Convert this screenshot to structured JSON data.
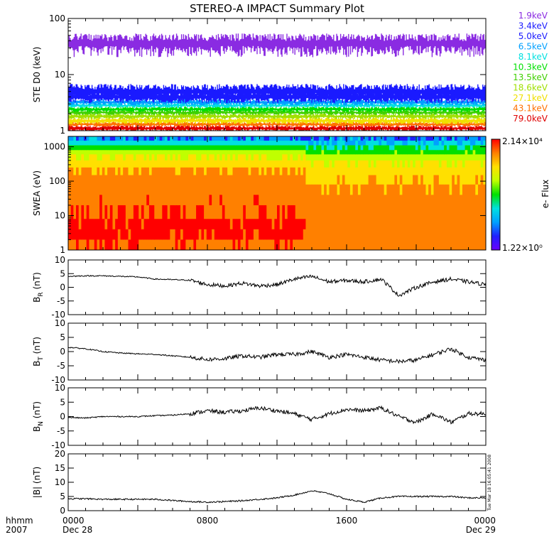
{
  "title": "STEREO-A IMPACT Summary Plot",
  "colors": {
    "black": "#000000",
    "frame": "#000000"
  },
  "chart_data": [
    {
      "id": "ste",
      "type": "line",
      "ylabel": "STE D0 (keV)",
      "yscale": "log",
      "ylim": [
        1,
        100
      ],
      "yticks": [
        {
          "v": 1,
          "label": "1"
        },
        {
          "v": 10,
          "label": "10"
        },
        {
          "v": 100,
          "label": "100"
        }
      ],
      "series": [
        {
          "name": "1.9keV",
          "color": "#8a2be2",
          "level": 36,
          "spread": 12
        },
        {
          "name": "3.4keV",
          "color": "#1a1aff",
          "level": 5.0,
          "spread": 1.2
        },
        {
          "name": "5.0keV",
          "color": "#1a1aff",
          "level": 4.0,
          "spread": 0.7
        },
        {
          "name": "6.5keV",
          "color": "#00a0ff",
          "level": 3.2,
          "spread": 0.3
        },
        {
          "name": "8.1keV",
          "color": "#00e0e0",
          "level": 2.8,
          "spread": 0.2
        },
        {
          "name": "10.3keV",
          "color": "#00e000",
          "level": 2.4,
          "spread": 0.2
        },
        {
          "name": "13.5keV",
          "color": "#40d000",
          "level": 2.1,
          "spread": 0.15
        },
        {
          "name": "18.6keV",
          "color": "#a0e000",
          "level": 1.8,
          "spread": 0.15
        },
        {
          "name": "27.1keV",
          "color": "#f0e000",
          "level": 1.5,
          "spread": 0.15
        },
        {
          "name": "43.1keV",
          "color": "#ff7000",
          "level": 1.3,
          "spread": 0.1
        },
        {
          "name": "79.0keV",
          "color": "#e00000",
          "level": 1.1,
          "spread": 0.1
        }
      ]
    },
    {
      "id": "swea",
      "type": "heatmap",
      "ylabel": "SWEA (eV)",
      "yscale": "log",
      "ylim": [
        1,
        2000
      ],
      "yticks": [
        {
          "v": 1,
          "label": "1"
        },
        {
          "v": 10,
          "label": "10"
        },
        {
          "v": 100,
          "label": "100"
        },
        {
          "v": 1000,
          "label": "1000"
        }
      ],
      "colorbar": {
        "label": "e- Flux",
        "max_label": "2.14×10⁴",
        "min_label": "1.22×10⁰",
        "max": 21400,
        "min": 1.22,
        "stops": [
          "#6a00ff",
          "#2020ff",
          "#00a0ff",
          "#00e0e0",
          "#00e000",
          "#c0ff00",
          "#ffe000",
          "#ff8000",
          "#ff0000"
        ]
      },
      "energy_profile_front": [
        {
          "e": 2000,
          "level": 0.2
        },
        {
          "e": 1500,
          "level": 0.3
        },
        {
          "e": 1100,
          "level": 0.45
        },
        {
          "e": 800,
          "level": 0.55
        },
        {
          "e": 600,
          "level": 0.65
        },
        {
          "e": 400,
          "level": 0.73
        },
        {
          "e": 250,
          "level": 0.8
        },
        {
          "e": 150,
          "level": 0.84
        },
        {
          "e": 80,
          "level": 0.88
        },
        {
          "e": 40,
          "level": 0.9
        },
        {
          "e": 20,
          "level": 0.92
        },
        {
          "e": 8,
          "level": 0.95
        },
        {
          "e": 4,
          "level": 0.97
        },
        {
          "e": 2,
          "level": 0.95
        },
        {
          "e": 1,
          "level": 0.9
        }
      ]
    },
    {
      "id": "br",
      "type": "line",
      "ylabel": "B_R (nT)",
      "ylim": [
        -10,
        10
      ],
      "yticks": [
        {
          "v": -10,
          "label": "-10"
        },
        {
          "v": -5,
          "label": "-5"
        },
        {
          "v": 0,
          "label": "0"
        },
        {
          "v": 5,
          "label": "5"
        },
        {
          "v": 10,
          "label": "10"
        }
      ],
      "x_hours": [
        0,
        1,
        2,
        3,
        4,
        5,
        6,
        7,
        8,
        9,
        10,
        11,
        12,
        13,
        14,
        15,
        16,
        17,
        18,
        19,
        20,
        21,
        22,
        23,
        24
      ],
      "values": [
        4,
        4.2,
        4.2,
        4,
        3.8,
        3,
        2.8,
        2.6,
        1,
        0.5,
        1.5,
        0.5,
        1,
        3,
        4,
        2,
        2.5,
        2,
        3,
        -3,
        0,
        2,
        3,
        2,
        1
      ]
    },
    {
      "id": "bt",
      "type": "line",
      "ylabel": "B_T (nT)",
      "ylim": [
        -10,
        10
      ],
      "yticks": [
        {
          "v": -10,
          "label": "-10"
        },
        {
          "v": -5,
          "label": "-5"
        },
        {
          "v": 0,
          "label": "0"
        },
        {
          "v": 5,
          "label": "5"
        },
        {
          "v": 10,
          "label": "10"
        }
      ],
      "x_hours": [
        0,
        1,
        2,
        3,
        4,
        5,
        6,
        7,
        8,
        9,
        10,
        11,
        12,
        13,
        14,
        15,
        16,
        17,
        18,
        19,
        20,
        21,
        22,
        23,
        24
      ],
      "values": [
        1.5,
        1,
        0,
        -0.5,
        -0.8,
        -1,
        -1.5,
        -2,
        -2.8,
        -2.5,
        -1.5,
        -2,
        -1,
        -1,
        0,
        -2,
        -1,
        -2,
        -3,
        -3.5,
        -3,
        -1,
        1,
        -2,
        -3
      ]
    },
    {
      "id": "bn",
      "type": "line",
      "ylabel": "B_N (nT)",
      "ylim": [
        -10,
        10
      ],
      "yticks": [
        {
          "v": -10,
          "label": "-10"
        },
        {
          "v": -5,
          "label": "-5"
        },
        {
          "v": 0,
          "label": "0"
        },
        {
          "v": 5,
          "label": "5"
        },
        {
          "v": 10,
          "label": "10"
        }
      ],
      "x_hours": [
        0,
        1,
        2,
        3,
        4,
        5,
        6,
        7,
        8,
        9,
        10,
        11,
        12,
        13,
        14,
        15,
        16,
        17,
        18,
        19,
        20,
        21,
        22,
        23,
        24
      ],
      "values": [
        -0.3,
        -0.5,
        0,
        0,
        0,
        0.3,
        0.5,
        1,
        2,
        1.5,
        2,
        3,
        2,
        1,
        -1,
        1,
        2.5,
        2,
        3,
        0,
        -2,
        1,
        -2,
        1,
        1
      ]
    },
    {
      "id": "bmag",
      "type": "line",
      "ylabel": "|B| (nT)",
      "ylim": [
        0,
        20
      ],
      "yticks": [
        {
          "v": 0,
          "label": "0"
        },
        {
          "v": 5,
          "label": "5"
        },
        {
          "v": 10,
          "label": "10"
        },
        {
          "v": 15,
          "label": "15"
        },
        {
          "v": 20,
          "label": "20"
        }
      ],
      "x_hours": [
        0,
        1,
        2,
        3,
        4,
        5,
        6,
        7,
        8,
        9,
        10,
        11,
        12,
        13,
        14,
        15,
        16,
        17,
        18,
        19,
        20,
        21,
        22,
        23,
        24
      ],
      "values": [
        4.2,
        4.2,
        4,
        4,
        4,
        4,
        3.6,
        3.2,
        3,
        3.2,
        3.5,
        4,
        4.5,
        5.5,
        7,
        6,
        4,
        3,
        4.5,
        5,
        5,
        5,
        5,
        4.5,
        4.5
      ]
    }
  ],
  "x_axis": {
    "left_label_top": "hhmm",
    "left_label_bottom": "2007",
    "ticks": [
      {
        "hour": 0,
        "label": "0000",
        "sub": "Dec 28"
      },
      {
        "hour": 8,
        "label": "0800",
        "sub": ""
      },
      {
        "hour": 16,
        "label": "1600",
        "sub": ""
      },
      {
        "hour": 24,
        "label": "0000",
        "sub": "Dec 29"
      }
    ]
  },
  "timestamp": "Tue Mar 18 16:05:41 2008"
}
